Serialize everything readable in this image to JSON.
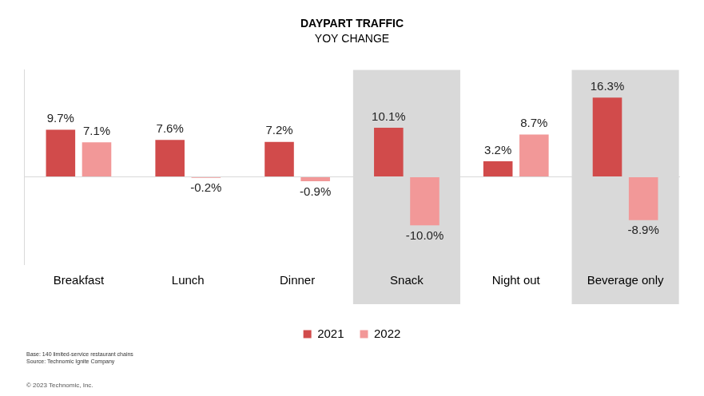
{
  "chart_data": {
    "type": "bar",
    "title": "DAYPART TRAFFIC",
    "subtitle": "YOY CHANGE",
    "categories": [
      "Breakfast",
      "Lunch",
      "Dinner",
      "Snack",
      "Night out",
      "Beverage only"
    ],
    "series": [
      {
        "name": "2021",
        "color": "#d14b4b",
        "values": [
          9.7,
          7.6,
          7.2,
          10.1,
          3.2,
          16.3
        ],
        "value_labels": [
          "9.7%",
          "7.6%",
          "7.2%",
          "10.1%",
          "3.2%",
          "16.3%"
        ]
      },
      {
        "name": "2022",
        "color": "#f29898",
        "values": [
          7.1,
          -0.2,
          -0.9,
          -10.0,
          8.7,
          -8.9
        ],
        "value_labels": [
          "7.1%",
          "-0.2%",
          "-0.9%",
          "-10.0%",
          "8.7%",
          "-8.9%"
        ]
      }
    ],
    "ylim": [
      -18,
      22
    ],
    "yticks": [
      0
    ],
    "grid": true,
    "tick_labels": "x",
    "data_labels": true,
    "legend": "bottom",
    "notes": [
      "Base: 140 limited-service restaurant chains",
      "Source: Technomic Ignite Company"
    ],
    "copyright": "© 2023 Technomic, Inc."
  }
}
